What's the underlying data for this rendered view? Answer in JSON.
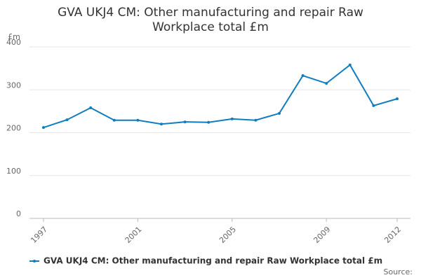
{
  "chart_data": {
    "type": "line",
    "title": "GVA UKJ4 CM: Other manufacturing and repair Raw Workplace total £m",
    "y_label": "£m",
    "x": [
      1997,
      1998,
      1999,
      2000,
      2001,
      2002,
      2003,
      2004,
      2005,
      2006,
      2007,
      2008,
      2009,
      2010,
      2011,
      2012
    ],
    "series": [
      {
        "name": "GVA UKJ4 CM: Other manufacturing and repair Raw Workplace total £m",
        "color": "#0f7dbf",
        "values": [
          212,
          230,
          258,
          229,
          229,
          220,
          225,
          224,
          232,
          229,
          245,
          333,
          315,
          358,
          263,
          279
        ]
      }
    ],
    "xlim": [
      1997,
      2012
    ],
    "xticks": [
      1997,
      2001,
      2005,
      2009,
      2012
    ],
    "ylim": [
      0,
      400
    ],
    "yticks": [
      0,
      100,
      200,
      300,
      400
    ],
    "grid": true,
    "source": "Source:"
  }
}
